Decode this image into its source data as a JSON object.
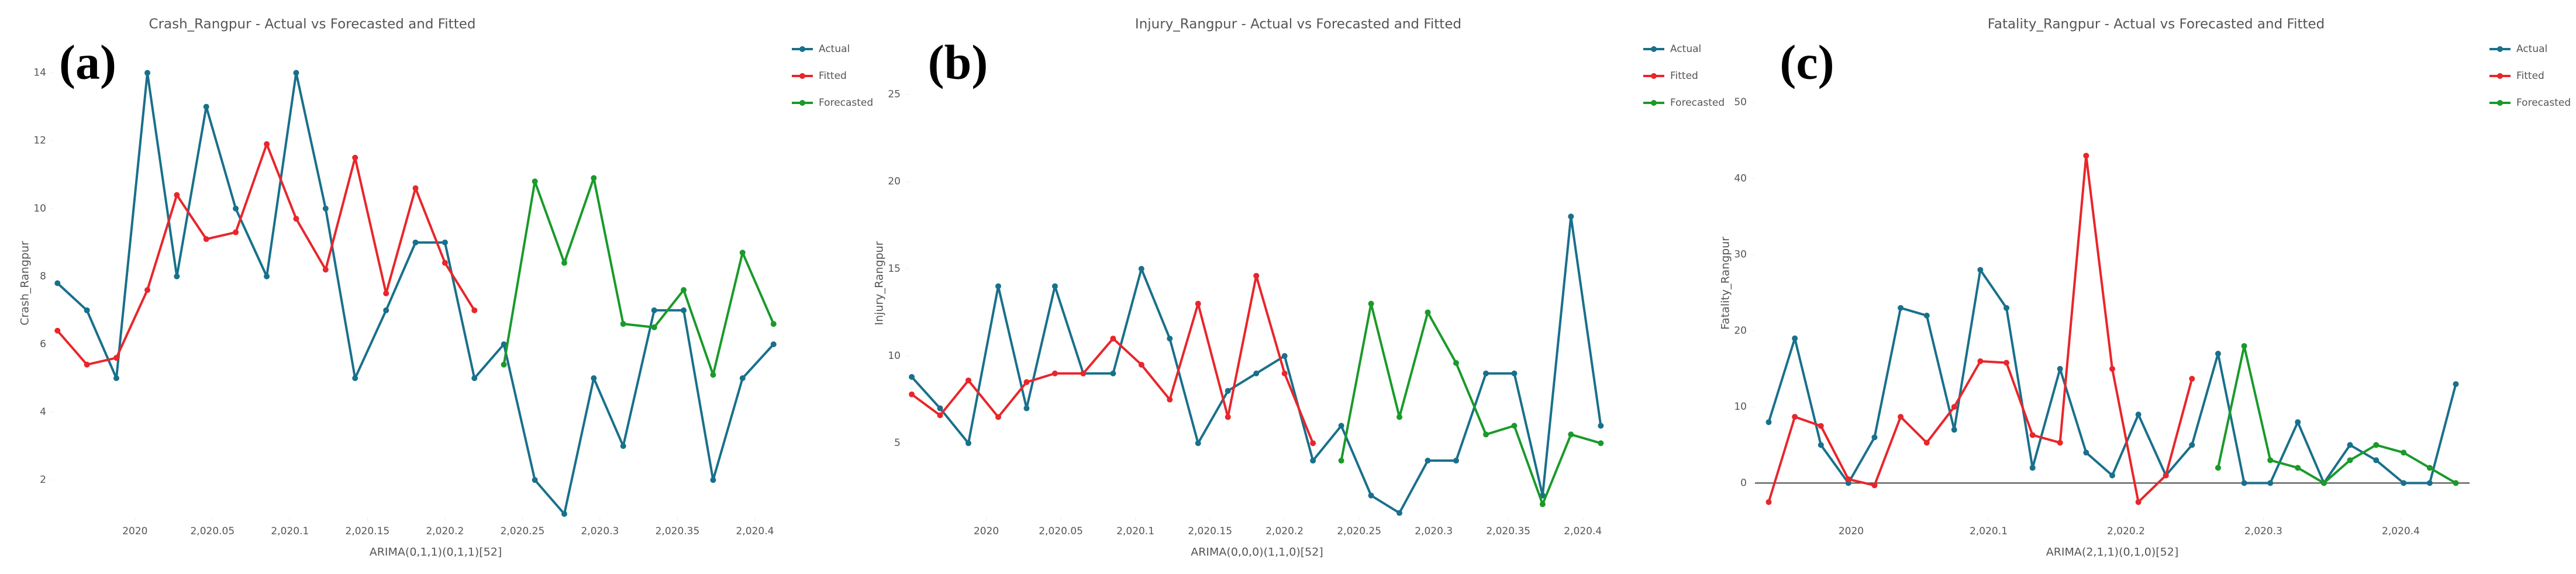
{
  "chart_data": [
    {
      "type": "line",
      "panel_label": "(a)",
      "title": "Crash_Rangpur - Actual vs Forecasted and Fitted",
      "x_label": "ARIMA(0,1,1)(0,1,1)[52]",
      "y_label": "Crash_Rangpur",
      "x": [
        2019.95,
        2019.969,
        2019.988,
        2020.008,
        2020.027,
        2020.046,
        2020.065,
        2020.085,
        2020.104,
        2020.123,
        2020.142,
        2020.162,
        2020.181,
        2020.2,
        2020.219,
        2020.238,
        2020.258,
        2020.277,
        2020.296,
        2020.315,
        2020.335,
        2020.354,
        2020.373,
        2020.392,
        2020.412
      ],
      "series": [
        {
          "name": "Actual",
          "color": "#19708b",
          "values": [
            7.8,
            7,
            5,
            14,
            8,
            13,
            10,
            8,
            14,
            10,
            5,
            7,
            9,
            9,
            5,
            6,
            2,
            1,
            5,
            3,
            7,
            7,
            2,
            5,
            6
          ]
        },
        {
          "name": "Fitted",
          "color": "#e8262b",
          "values": [
            6.4,
            5.4,
            5.6,
            7.6,
            10.4,
            9.1,
            9.3,
            11.9,
            9.7,
            8.2,
            11.5,
            7.5,
            10.6,
            8.4,
            7.0,
            null,
            null,
            null,
            null,
            null,
            null,
            null,
            null,
            null,
            null
          ]
        },
        {
          "name": "Forecasted",
          "color": "#1a9a2a",
          "values": [
            null,
            null,
            null,
            null,
            null,
            null,
            null,
            null,
            null,
            null,
            null,
            null,
            null,
            null,
            null,
            5.4,
            10.8,
            8.4,
            10.9,
            6.6,
            6.5,
            7.6,
            5.1,
            8.7,
            6.6
          ]
        }
      ],
      "xlim": [
        2019.948,
        2020.44
      ],
      "ylim": [
        0.9,
        14.7
      ],
      "xticks": [
        2020,
        {
          "value": 2020.05,
          "label": "2,020.05"
        },
        {
          "value": 2020.1,
          "label": "2,020.1"
        },
        {
          "value": 2020.15,
          "label": "2,020.15"
        },
        {
          "value": 2020.2,
          "label": "2,020.2"
        },
        {
          "value": 2020.25,
          "label": "2,020.25"
        },
        {
          "value": 2020.3,
          "label": "2,020.3"
        },
        {
          "value": 2020.35,
          "label": "2,020.35"
        },
        {
          "value": 2020.4,
          "label": "2,020.4"
        }
      ],
      "yticks": [
        2,
        4,
        6,
        8,
        10,
        12,
        14
      ],
      "grid": false,
      "legend": "right",
      "zero_line": false
    },
    {
      "type": "line",
      "panel_label": "(b)",
      "title": "Injury_Rangpur - Actual vs Forecasted and Fitted",
      "x_label": "ARIMA(0,0,0)(1,1,0)[52]",
      "y_label": "Injury_Rangpur",
      "x": [
        2019.95,
        2019.969,
        2019.988,
        2020.008,
        2020.027,
        2020.046,
        2020.065,
        2020.085,
        2020.104,
        2020.123,
        2020.142,
        2020.162,
        2020.181,
        2020.2,
        2020.219,
        2020.238,
        2020.258,
        2020.277,
        2020.296,
        2020.315,
        2020.335,
        2020.354,
        2020.373,
        2020.392,
        2020.412
      ],
      "series": [
        {
          "name": "Actual",
          "color": "#19708b",
          "values": [
            8.8,
            7,
            5,
            14,
            7,
            14,
            9,
            9,
            15,
            11,
            5,
            8,
            9,
            10,
            4,
            6,
            2,
            1,
            4,
            4,
            9,
            9,
            2,
            18,
            6
          ]
        },
        {
          "name": "Fitted",
          "color": "#e8262b",
          "values": [
            7.8,
            6.6,
            8.6,
            6.5,
            8.5,
            9,
            9,
            11,
            9.5,
            7.5,
            13,
            6.5,
            14.6,
            9,
            5,
            null,
            null,
            null,
            null,
            null,
            null,
            null,
            null,
            null,
            null
          ]
        },
        {
          "name": "Forecasted",
          "color": "#1a9a2a",
          "values": [
            null,
            null,
            null,
            null,
            null,
            null,
            null,
            null,
            null,
            null,
            null,
            null,
            null,
            null,
            null,
            4,
            13,
            6.5,
            12.5,
            9.6,
            5.5,
            6,
            1.5,
            5.5,
            5
          ]
        }
      ],
      "xlim": [
        2019.948,
        2020.415
      ],
      "ylim": [
        0.75,
        27.6
      ],
      "xticks": [
        2020,
        {
          "value": 2020.05,
          "label": "2,020.05"
        },
        {
          "value": 2020.1,
          "label": "2,020.1"
        },
        {
          "value": 2020.15,
          "label": "2,020.15"
        },
        {
          "value": 2020.2,
          "label": "2,020.2"
        },
        {
          "value": 2020.25,
          "label": "2,020.25"
        },
        {
          "value": 2020.3,
          "label": "2,020.3"
        },
        {
          "value": 2020.35,
          "label": "2,020.35"
        },
        {
          "value": 2020.4,
          "label": "2,020.4"
        }
      ],
      "yticks": [
        5,
        10,
        15,
        20,
        25
      ],
      "grid": false,
      "legend": "right",
      "zero_line": false
    },
    {
      "type": "line",
      "panel_label": "(c)",
      "title": "Fatality_Rangpur - Actual vs Forecasted and Fitted",
      "x_label": "ARIMA(2,1,1)(0,1,0)[52]",
      "y_label": "Fatality_Rangpur",
      "x": [
        2019.94,
        2019.959,
        2019.978,
        2019.998,
        2020.017,
        2020.036,
        2020.055,
        2020.075,
        2020.094,
        2020.113,
        2020.132,
        2020.152,
        2020.171,
        2020.19,
        2020.209,
        2020.229,
        2020.248,
        2020.267,
        2020.286,
        2020.305,
        2020.325,
        2020.344,
        2020.363,
        2020.382,
        2020.402,
        2020.421,
        2020.44
      ],
      "series": [
        {
          "name": "Actual",
          "color": "#19708b",
          "values": [
            8,
            19,
            5,
            0,
            6,
            23,
            22,
            7,
            28,
            23,
            2,
            15,
            4,
            1,
            9,
            1,
            5,
            17,
            0,
            0,
            8,
            0,
            5,
            3,
            0,
            0,
            13
          ]
        },
        {
          "name": "Fitted",
          "color": "#e8262b",
          "values": [
            -2.5,
            8.7,
            7.5,
            0.5,
            -0.3,
            8.7,
            5.3,
            10,
            16,
            15.8,
            6.3,
            5.3,
            43,
            15,
            -2.5,
            1,
            13.7,
            null,
            null,
            null,
            null,
            null,
            null,
            null,
            null,
            null,
            null
          ]
        },
        {
          "name": "Forecasted",
          "color": "#1a9a2a",
          "values": [
            null,
            null,
            null,
            null,
            null,
            null,
            null,
            null,
            null,
            null,
            null,
            null,
            null,
            null,
            null,
            null,
            null,
            2,
            18,
            3,
            2,
            0,
            3,
            5,
            4,
            2,
            0
          ]
        }
      ],
      "xlim": [
        2019.93,
        2020.45
      ],
      "ylim": [
        -4.5,
        57
      ],
      "xticks": [
        2020,
        {
          "value": 2020.1,
          "label": "2,020.1"
        },
        {
          "value": 2020.2,
          "label": "2,020.2"
        },
        {
          "value": 2020.3,
          "label": "2,020.3"
        },
        {
          "value": 2020.4,
          "label": "2,020.4"
        }
      ],
      "yticks": [
        0,
        10,
        20,
        30,
        40,
        50
      ],
      "grid": false,
      "legend": "right",
      "zero_line": true
    }
  ]
}
